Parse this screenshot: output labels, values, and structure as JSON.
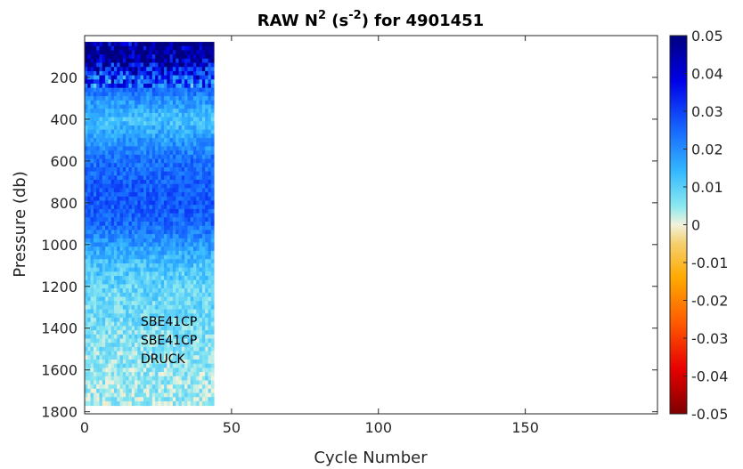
{
  "chart_data": {
    "type": "heatmap",
    "title": {
      "main": "RAW N",
      "sup1": "2",
      "mid": " (s",
      "sup2": "-2",
      "end": ") for 4901451"
    },
    "xlabel": "Cycle Number",
    "ylabel": "Pressure (db)",
    "xlim": [
      0,
      195
    ],
    "ylim": [
      0,
      1810
    ],
    "y_reversed": true,
    "x_ticks": [
      "0",
      "50",
      "100",
      "150"
    ],
    "x_tick_values": [
      0,
      50,
      100,
      150
    ],
    "y_ticks": [
      "200",
      "400",
      "600",
      "800",
      "1000",
      "1200",
      "1400",
      "1600",
      "1800"
    ],
    "y_tick_values": [
      200,
      400,
      600,
      800,
      1000,
      1200,
      1400,
      1600,
      1800
    ],
    "colorbar": {
      "min": -0.05,
      "max": 0.05,
      "ticks": [
        "0.05",
        "0.04",
        "0.03",
        "0.02",
        "0.01",
        "0",
        "-0.01",
        "-0.02",
        "-0.03",
        "-0.04",
        "-0.05"
      ],
      "tick_values": [
        0.05,
        0.04,
        0.03,
        0.02,
        0.01,
        0,
        -0.01,
        -0.02,
        -0.03,
        -0.04,
        -0.05
      ]
    },
    "data_extent": {
      "cycles": [
        1,
        44
      ],
      "pressure": [
        30,
        1760
      ]
    },
    "pressure_profile": [
      {
        "pressure": 100,
        "value": 0.05
      },
      {
        "pressure": 200,
        "value": 0.03
      },
      {
        "pressure": 300,
        "value": 0.02
      },
      {
        "pressure": 400,
        "value": 0.012
      },
      {
        "pressure": 500,
        "value": 0.018
      },
      {
        "pressure": 600,
        "value": 0.024
      },
      {
        "pressure": 700,
        "value": 0.026
      },
      {
        "pressure": 800,
        "value": 0.027
      },
      {
        "pressure": 900,
        "value": 0.025
      },
      {
        "pressure": 1000,
        "value": 0.018
      },
      {
        "pressure": 1100,
        "value": 0.012
      },
      {
        "pressure": 1200,
        "value": 0.009
      },
      {
        "pressure": 1400,
        "value": 0.007
      },
      {
        "pressure": 1600,
        "value": 0.005
      },
      {
        "pressure": 1760,
        "value": 0.004
      }
    ],
    "annotations": [
      "SBE41CP",
      "SBE41CP",
      "DRUCK"
    ]
  }
}
